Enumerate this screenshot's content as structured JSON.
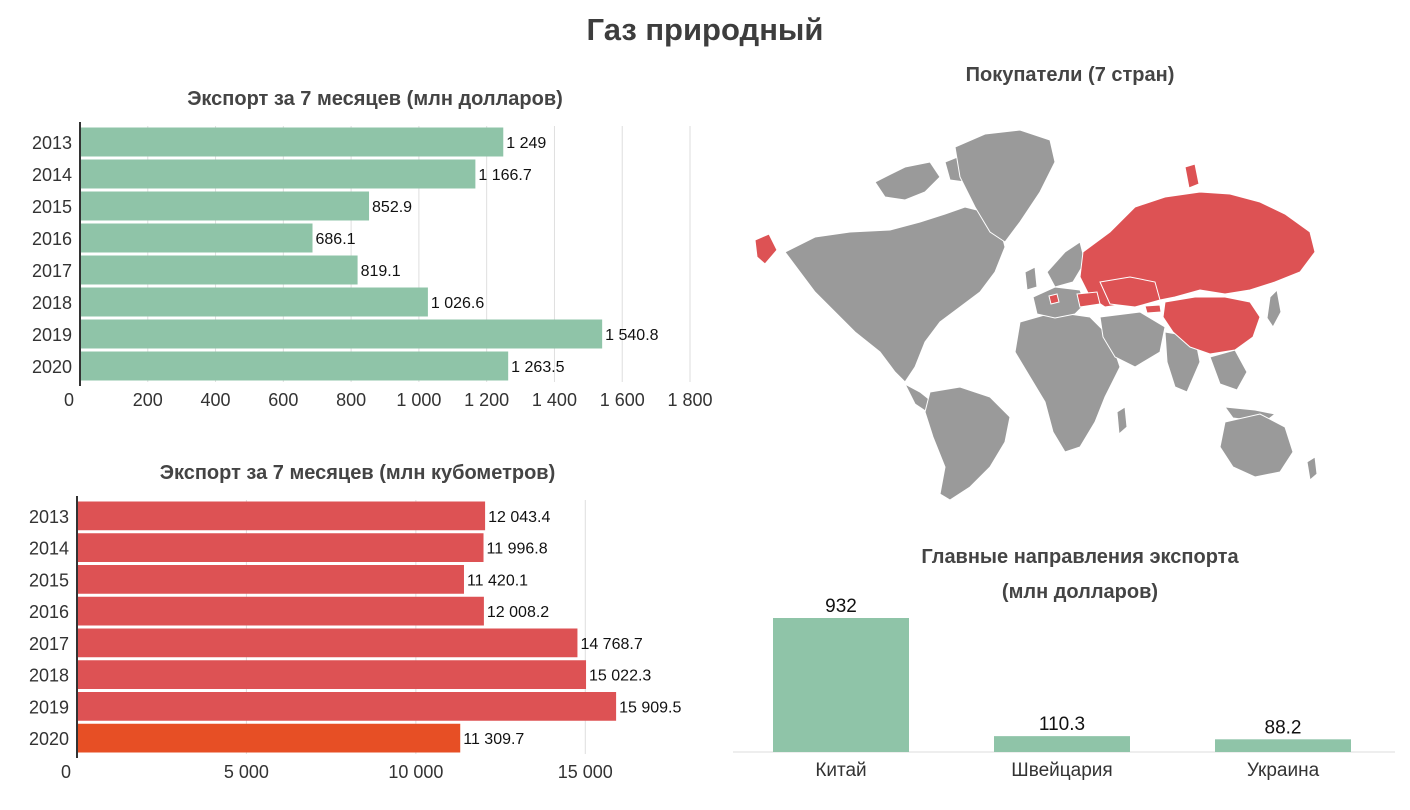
{
  "page_title": "Газ природный",
  "map": {
    "title": "Покупатели (7 стран)",
    "buyer_color": "#dd5254",
    "land_color": "#9a9a9a"
  },
  "chart_data": [
    {
      "id": "usd",
      "type": "bar",
      "orientation": "horizontal",
      "title": "Экспорт за 7 месяцев (млн долларов)",
      "categories": [
        "2013",
        "2014",
        "2015",
        "2016",
        "2017",
        "2018",
        "2019",
        "2020"
      ],
      "values": [
        1249,
        1166.7,
        852.9,
        686.1,
        819.1,
        1026.6,
        1540.8,
        1263.5
      ],
      "value_labels": [
        "1 249",
        "1 166.7",
        "852.9",
        "686.1",
        "819.1",
        "1 026.6",
        "1 540.8",
        "1 263.5"
      ],
      "xlim": [
        0,
        1800
      ],
      "ticks": [
        0,
        200,
        400,
        600,
        800,
        1000,
        1200,
        1400,
        1600,
        1800
      ],
      "tick_labels": [
        "0",
        "200",
        "400",
        "600",
        "800",
        "1 000",
        "1 200",
        "1 400",
        "1 600",
        "1 800"
      ],
      "colors": [
        "#8fc4a8",
        "#8fc4a8",
        "#8fc4a8",
        "#8fc4a8",
        "#8fc4a8",
        "#8fc4a8",
        "#8fc4a8",
        "#8fc4a8"
      ],
      "xlabel": "",
      "ylabel": ""
    },
    {
      "id": "volume",
      "type": "bar",
      "orientation": "horizontal",
      "title": "Экспорт за 7 месяцев (млн кубометров)",
      "categories": [
        "2013",
        "2014",
        "2015",
        "2016",
        "2017",
        "2018",
        "2019",
        "2020"
      ],
      "values": [
        12043.4,
        11996.8,
        11420.1,
        12008.2,
        14768.7,
        15022.3,
        15909.5,
        11309.7
      ],
      "value_labels": [
        "12 043.4",
        "11 996.8",
        "11 420.1",
        "12 008.2",
        "14 768.7",
        "15 022.3",
        "15 909.5",
        "11 309.7"
      ],
      "xlim": [
        0,
        17500
      ],
      "ticks": [
        0,
        5000,
        10000,
        15000
      ],
      "tick_labels": [
        "0",
        "5 000",
        "10 000",
        "15 000"
      ],
      "colors": [
        "#dd5254",
        "#dd5254",
        "#dd5254",
        "#dd5254",
        "#dd5254",
        "#dd5254",
        "#dd5254",
        "#e74f25"
      ],
      "xlabel": "",
      "ylabel": ""
    },
    {
      "id": "destinations",
      "type": "bar",
      "orientation": "vertical",
      "title": "Главные направления экспорта (млн долларов)",
      "title_lines": [
        "Главные направления экспорта",
        "(млн долларов)"
      ],
      "categories": [
        "Китай",
        "Швейцария",
        "Украина"
      ],
      "values": [
        932,
        110.3,
        88.2
      ],
      "value_labels": [
        "932",
        "110.3",
        "88.2"
      ],
      "ylim": [
        0,
        932
      ],
      "colors": [
        "#8fc4a8",
        "#8fc4a8",
        "#8fc4a8"
      ],
      "xlabel": "",
      "ylabel": ""
    }
  ]
}
